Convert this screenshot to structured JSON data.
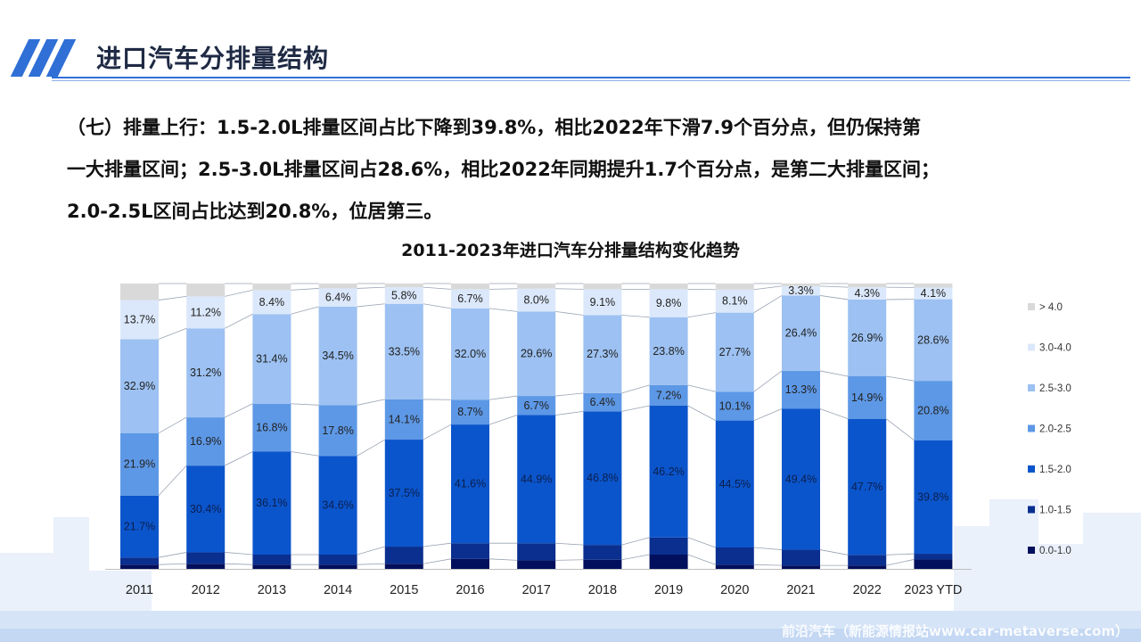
{
  "header": {
    "title": "进口汽车分排量结构"
  },
  "summary": {
    "lines": [
      "（七）排量上行：1.5-2.0L排量区间占比下降到39.8%，相比2022年下滑7.9个百分点，但仍保持第",
      "一大排量区间；2.5-3.0L排量区间占28.6%，相比2022年同期提升1.7个百分点，是第二大排量区间；",
      "2.0-2.5L区间占比达到20.8%，位居第三。"
    ]
  },
  "footer": {
    "credit": "前沿汽车（新能源情报站www.car-metaverse.com）"
  },
  "colors": {
    "accent": "#2f6fd6",
    "series": [
      "#020f5c",
      "#0a2f8f",
      "#0b55cc",
      "#5d98e6",
      "#9cc1f2",
      "#dbe8fb",
      "#d9d9d9"
    ]
  },
  "chart_data": {
    "type": "bar",
    "stacked": true,
    "percent_stacked": true,
    "title": "2011-2023年进口汽车分排量结构变化趋势",
    "categories": [
      "2011",
      "2012",
      "2013",
      "2014",
      "2015",
      "2016",
      "2017",
      "2018",
      "2019",
      "2020",
      "2021",
      "2022",
      "2023 YTD"
    ],
    "ylim": [
      0,
      100
    ],
    "legend_position": "right",
    "gridlines": false,
    "series": [
      {
        "name": "0.0-1.0",
        "values": [
          1.5,
          1.8,
          1.5,
          1.5,
          1.8,
          3.5,
          3.0,
          3.2,
          5.0,
          1.5,
          1.2,
          1.2,
          3.3
        ]
      },
      {
        "name": "1.0-1.5",
        "values": [
          2.5,
          4.0,
          3.5,
          3.5,
          6.0,
          5.5,
          6.0,
          5.2,
          6.0,
          6.0,
          5.5,
          3.7,
          2.0
        ]
      },
      {
        "name": "1.5-2.0",
        "values": [
          21.7,
          30.4,
          36.1,
          34.6,
          37.5,
          41.6,
          44.9,
          46.8,
          46.2,
          44.5,
          49.4,
          47.7,
          39.8
        ]
      },
      {
        "name": "2.0-2.5",
        "values": [
          21.9,
          16.9,
          16.8,
          17.8,
          14.1,
          8.7,
          6.7,
          6.4,
          7.2,
          10.1,
          13.3,
          14.9,
          20.8
        ]
      },
      {
        "name": "2.5-3.0",
        "values": [
          32.9,
          31.2,
          31.4,
          34.5,
          33.5,
          32.0,
          29.6,
          27.3,
          23.8,
          27.7,
          26.4,
          26.9,
          28.6
        ]
      },
      {
        "name": "3.0-4.0",
        "values": [
          13.7,
          11.2,
          8.4,
          6.4,
          5.8,
          6.7,
          8.0,
          9.1,
          9.8,
          8.1,
          3.3,
          4.3,
          4.1
        ]
      },
      {
        "name": "> 4.0",
        "values": [
          5.8,
          4.5,
          2.3,
          1.7,
          1.3,
          2.0,
          1.8,
          2.0,
          2.0,
          2.1,
          0.9,
          1.3,
          1.4
        ]
      }
    ],
    "data_labels_series": [
      "1.5-2.0",
      "2.0-2.5",
      "2.5-3.0",
      "3.0-4.0"
    ]
  }
}
